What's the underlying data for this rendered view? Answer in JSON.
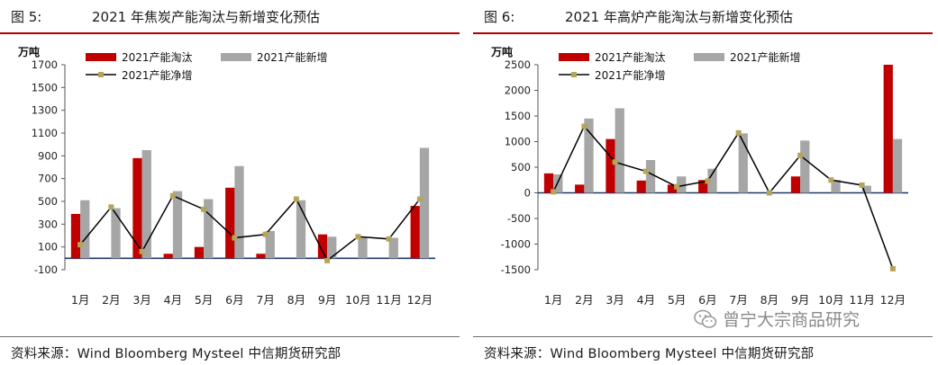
{
  "chart_data": [
    {
      "type": "bar",
      "fig_label": "图 5:",
      "title": "2021 年焦炭产能淘汰与新增变化预估",
      "unit_label": "万吨",
      "categories": [
        "1月",
        "2月",
        "3月",
        "4月",
        "5月",
        "6月",
        "7月",
        "8月",
        "9月",
        "10月",
        "11月",
        "12月"
      ],
      "series": [
        {
          "name": "2021产能淘汰",
          "kind": "bar",
          "values": [
            390,
            0,
            880,
            40,
            100,
            620,
            40,
            0,
            210,
            0,
            0,
            460
          ]
        },
        {
          "name": "2021产能新增",
          "kind": "bar",
          "values": [
            510,
            440,
            950,
            590,
            520,
            810,
            240,
            510,
            190,
            180,
            180,
            970
          ]
        },
        {
          "name": "2021产能净增",
          "kind": "line",
          "values": [
            120,
            450,
            60,
            550,
            430,
            180,
            210,
            520,
            -20,
            190,
            170,
            520
          ]
        }
      ],
      "ylim": [
        -100,
        1700
      ],
      "yticks": [
        -100,
        100,
        300,
        500,
        700,
        900,
        1100,
        1300,
        1500,
        1700
      ],
      "legend": "top",
      "source": "资料来源：Wind Bloomberg Mysteel 中信期货研究部"
    },
    {
      "type": "bar",
      "fig_label": "图 6:",
      "title": "2021 年高炉产能淘汰与新增变化预估",
      "unit_label": "万吨",
      "categories": [
        "1月",
        "2月",
        "3月",
        "4月",
        "5月",
        "6月",
        "7月",
        "8月",
        "9月",
        "10月",
        "11月",
        "12月"
      ],
      "series": [
        {
          "name": "2021产能淘汰",
          "kind": "bar",
          "values": [
            380,
            160,
            1050,
            240,
            160,
            250,
            0,
            0,
            320,
            0,
            0,
            2500
          ]
        },
        {
          "name": "2021产能新增",
          "kind": "bar",
          "values": [
            360,
            1450,
            1650,
            640,
            320,
            470,
            1160,
            0,
            1020,
            250,
            140,
            1050
          ]
        },
        {
          "name": "2021产能净增",
          "kind": "line",
          "values": [
            20,
            1300,
            600,
            420,
            120,
            230,
            1170,
            0,
            730,
            250,
            150,
            -1480
          ]
        }
      ],
      "ylim": [
        -1500,
        2500
      ],
      "yticks": [
        -1500,
        -1000,
        -500,
        0,
        500,
        1000,
        1500,
        2000,
        2500
      ],
      "legend": "top",
      "source": "资料来源：Wind Bloomberg Mysteel 中信期货研究部"
    }
  ],
  "watermark": "曾宁大宗商品研究",
  "colors": {
    "removal": "#c00000",
    "addition": "#a6a6a6",
    "net_line": "#000000",
    "net_marker": "#b5a55a",
    "rule": "#b00000",
    "zero_axis": "#1f3864"
  }
}
